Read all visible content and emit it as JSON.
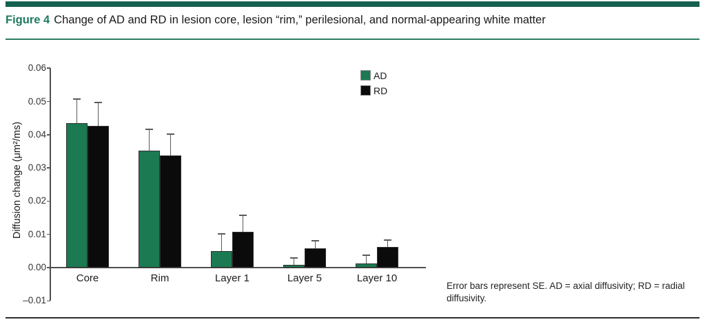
{
  "figure": {
    "label": "Figure 4",
    "title": "Change of AD and RD in lesion core, lesion “rim,” perilesional, and normal-appearing white matter"
  },
  "caption": "Error bars represent SE. AD = axial diffusivity; RD = radial diffusivity.",
  "colors": {
    "accent_bar_green": "#15604E",
    "title_green": "#1d7b5f",
    "series_ad_green": "#1b7a52",
    "series_rd_black": "#0b0b0b",
    "axis_gray": "#4d4d4d",
    "bottom_rule": "#2b2b2b"
  },
  "chart_data": {
    "type": "bar",
    "title": "",
    "categories": [
      "Core",
      "Rim",
      "Layer 1",
      "Layer 5",
      "Layer 10"
    ],
    "series": [
      {
        "name": "AD",
        "color": "#1b7a52",
        "values": [
          0.0435,
          0.0352,
          0.005,
          0.0008,
          0.0013
        ],
        "se": [
          0.0072,
          0.0065,
          0.0052,
          0.002,
          0.0024
        ]
      },
      {
        "name": "RD",
        "color": "#0b0b0b",
        "values": [
          0.0427,
          0.0338,
          0.0107,
          0.0058,
          0.0062
        ],
        "se": [
          0.007,
          0.0064,
          0.005,
          0.0023,
          0.0021
        ]
      }
    ],
    "xlabel": "",
    "ylabel": "Diffusion change (μm²/ms)",
    "ylim": [
      -0.01,
      0.06
    ],
    "ytick_values": [
      0.06,
      0.05,
      0.04,
      0.03,
      0.02,
      0.01,
      0.0,
      -0.01
    ],
    "ytick_labels": [
      "0.06",
      "0.05",
      "0.04",
      "0.03",
      "0.02",
      "0.01",
      "0.00",
      "–0.01"
    ],
    "grid": false,
    "legend_position": "inside-top-right",
    "error_bars": "SE, upper side only"
  }
}
